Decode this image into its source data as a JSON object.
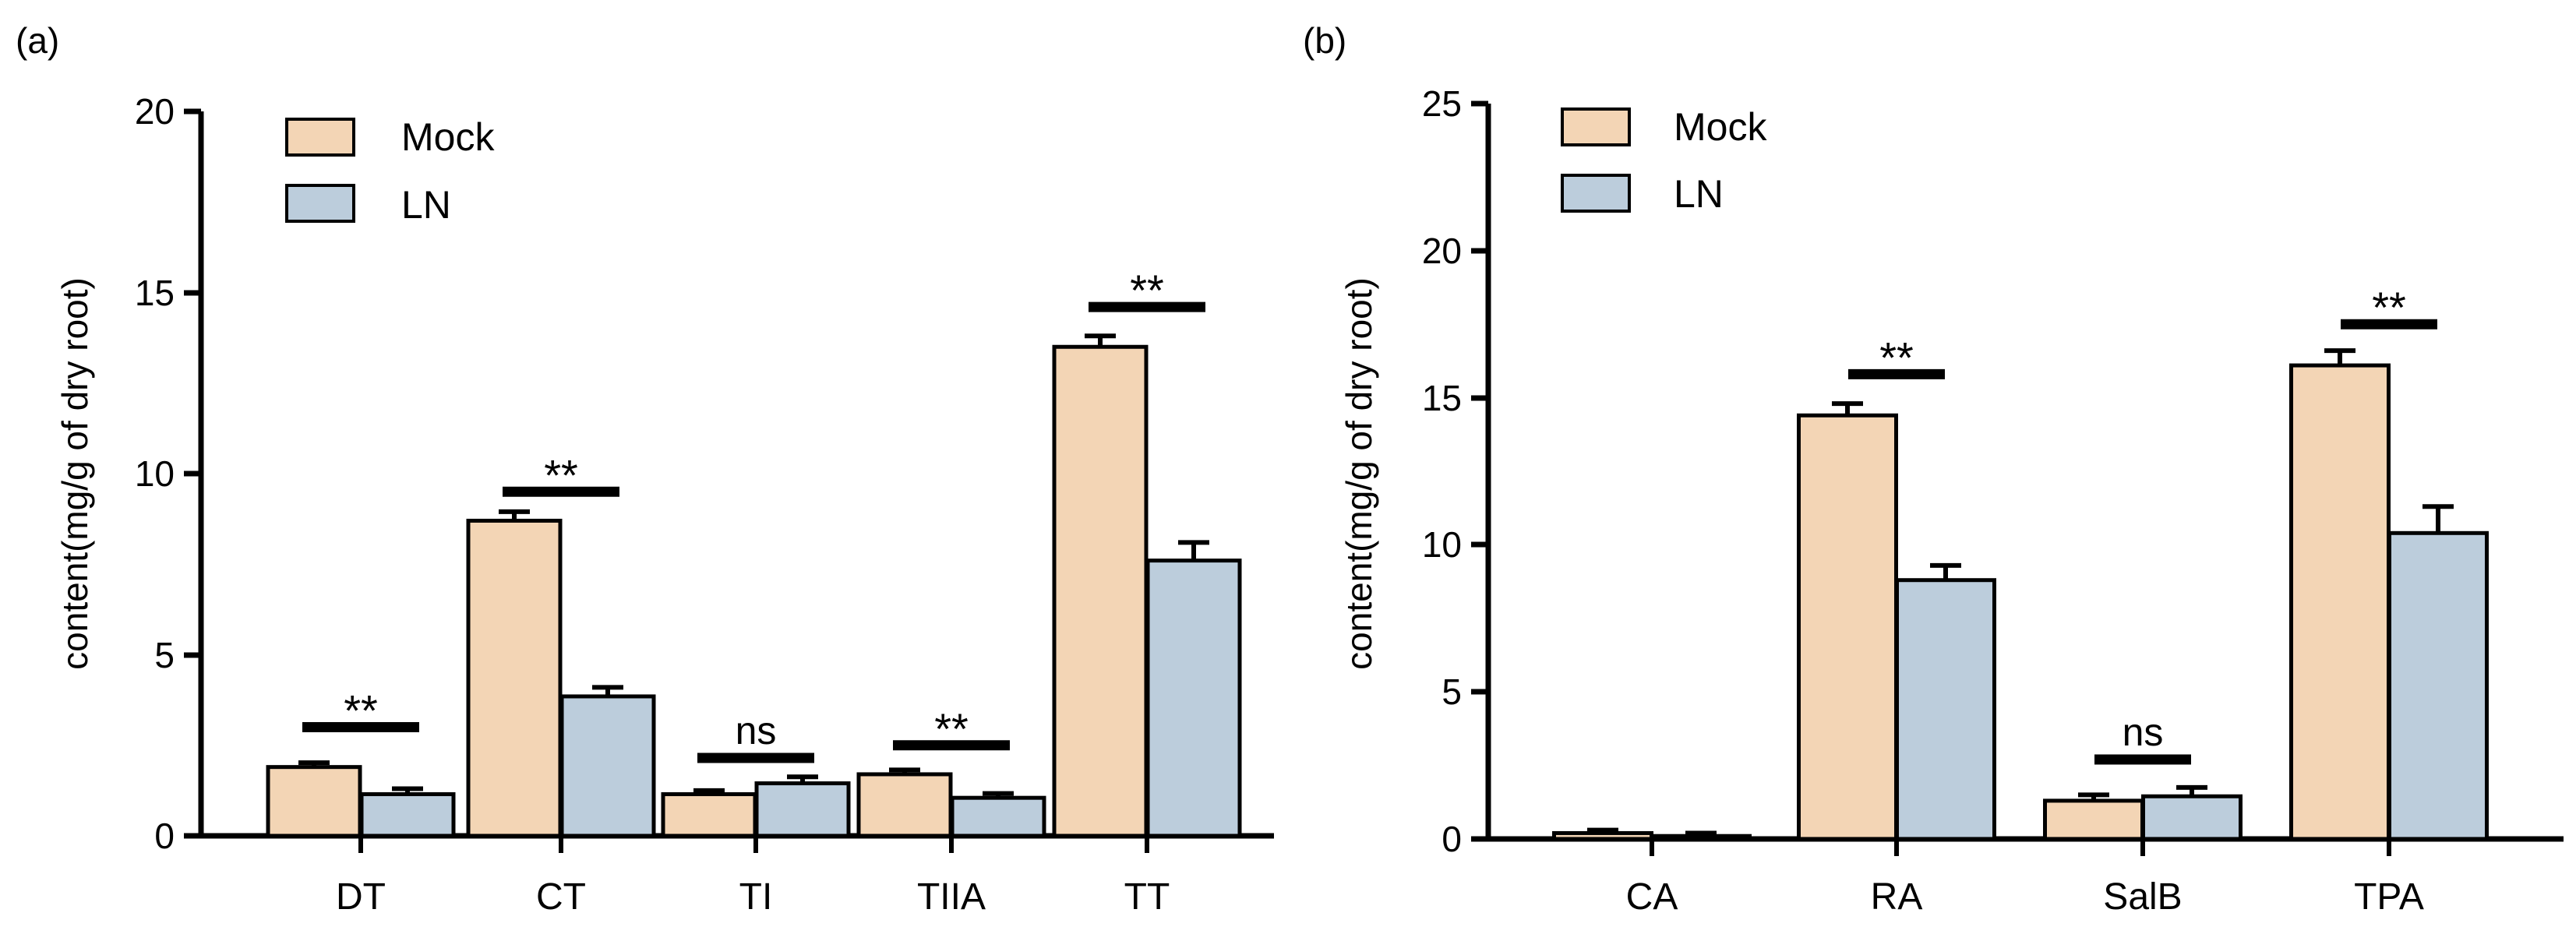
{
  "colors": {
    "mock": "#f3d5b5",
    "ln": "#bccddc",
    "stroke": "#000000"
  },
  "chart_data": [
    {
      "panel_label": "(a)",
      "type": "bar",
      "title": "",
      "xlabel": "",
      "ylabel": "content(mg/g of dry root)",
      "ylim": [
        0,
        20
      ],
      "yticks": [
        "0",
        "5",
        "10",
        "15",
        "20"
      ],
      "legend_position": "top-left",
      "categories": [
        "DT",
        "CT",
        "TI",
        "TIIA",
        "TT"
      ],
      "series": [
        {
          "name": "Mock",
          "values": [
            1.9,
            8.7,
            1.15,
            1.7,
            13.5
          ],
          "errors": [
            0.12,
            0.25,
            0.1,
            0.12,
            0.3
          ]
        },
        {
          "name": "LN",
          "values": [
            1.15,
            3.85,
            1.45,
            1.05,
            7.6
          ],
          "errors": [
            0.15,
            0.25,
            0.18,
            0.12,
            0.5
          ]
        }
      ],
      "significance": [
        "**",
        "**",
        "ns",
        "**",
        "**"
      ],
      "sig_levels": [
        3.0,
        9.5,
        2.15,
        2.5,
        14.6
      ]
    },
    {
      "panel_label": "(b)",
      "type": "bar",
      "title": "",
      "xlabel": "",
      "ylabel": "content(mg/g of dry root)",
      "ylim": [
        0,
        25
      ],
      "yticks": [
        "0",
        "5",
        "10",
        "15",
        "20",
        "25"
      ],
      "legend_position": "top-left",
      "categories": [
        "CA",
        "RA",
        "SalB",
        "TPA"
      ],
      "series": [
        {
          "name": "Mock",
          "values": [
            0.2,
            14.4,
            1.3,
            16.1
          ],
          "errors": [
            0.1,
            0.4,
            0.2,
            0.5
          ]
        },
        {
          "name": "LN",
          "values": [
            0.1,
            8.8,
            1.45,
            10.4
          ],
          "errors": [
            0.1,
            0.5,
            0.3,
            0.9
          ]
        }
      ],
      "significance": [
        "",
        "**",
        "ns",
        "**"
      ],
      "sig_levels": [
        0,
        15.8,
        2.7,
        17.5
      ]
    }
  ]
}
